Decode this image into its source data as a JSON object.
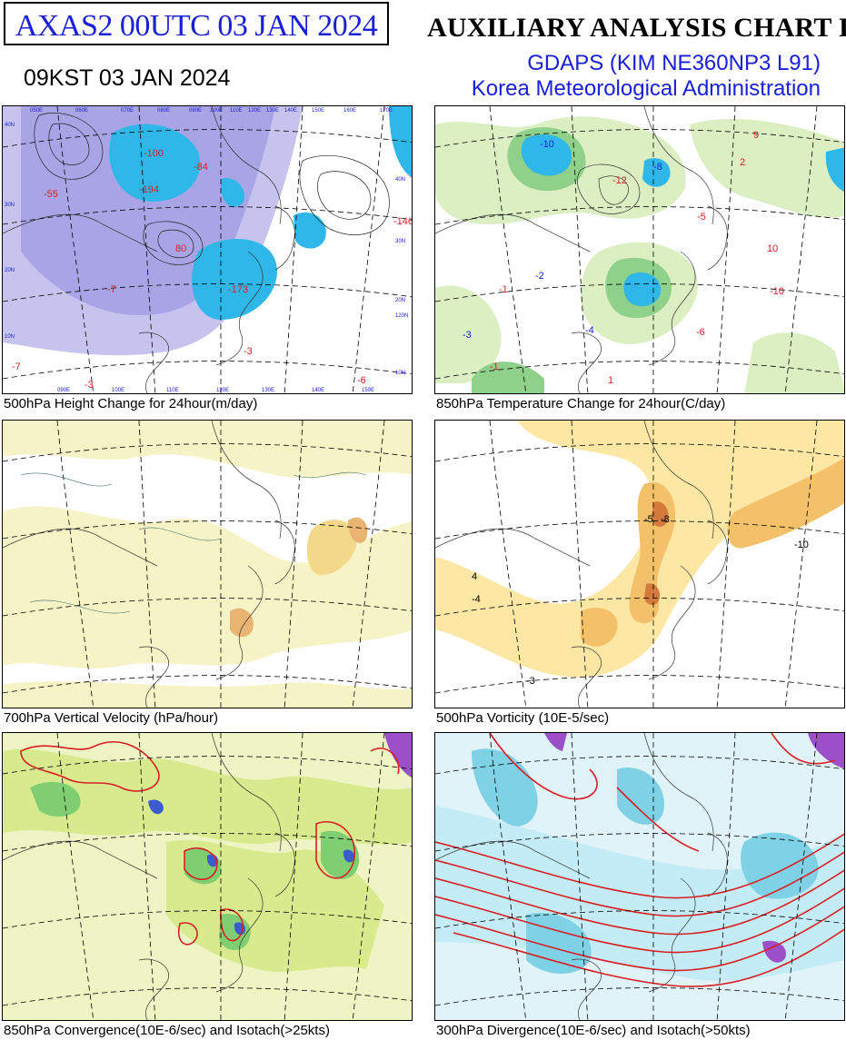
{
  "header": {
    "code_label": "AXAS2  00UTC 03 JAN 2024",
    "kst_label": "09KST 03 JAN 2024",
    "title": "AUXILIARY ANALYSIS CHART II",
    "model": "GDAPS (KIM NE360NP3 L91)",
    "agency": "Korea Meteorological Administration"
  },
  "panels": [
    {
      "id": "height-change",
      "caption": "500hPa Height Change for 24hour(m/day)",
      "values": [
        "-100",
        "-84",
        "-194",
        "-173",
        "80",
        "-146",
        "-3",
        "-7",
        "-6",
        "-3",
        "-7",
        "-55"
      ]
    },
    {
      "id": "temp-change",
      "caption": "850hPa Temperature Change for 24hour(C/day)",
      "values": [
        "-10",
        "-12",
        "-8",
        "-5",
        "10",
        "-10",
        "-6",
        "-1",
        "1",
        "-2",
        "-3",
        "-4",
        "2",
        "-1",
        "9"
      ]
    },
    {
      "id": "vertical-velocity",
      "caption": "700hPa Vertical Velocity (hPa/hour)",
      "values": []
    },
    {
      "id": "vorticity",
      "caption": "500hPa Vorticity (10E-5/sec)",
      "values": [
        "-8",
        "-5",
        "-4",
        "-10",
        "-3",
        "4"
      ]
    },
    {
      "id": "convergence",
      "caption": "850hPa Convergence(10E-6/sec) and Isotach(>25kts)",
      "values": []
    },
    {
      "id": "divergence",
      "caption": "300hPa Divergence(10E-6/sec) and Isotach(>50kts)",
      "values": []
    }
  ],
  "map_labels": {
    "longitudes_top": [
      "050E",
      "060E",
      "070E",
      "080E",
      "090E",
      "100E",
      "110E",
      "120E",
      "130E",
      "140E",
      "150E",
      "160E",
      "170E"
    ],
    "longitudes_bottom": [
      "090E",
      "100E",
      "110E",
      "120E",
      "130E",
      "140E",
      "150E"
    ],
    "latitudes_left": [
      "40N",
      "30N",
      "20N",
      "10N"
    ],
    "latitudes_right": [
      "40N",
      "30N",
      "20N",
      "120N",
      "10N"
    ]
  },
  "colors": {
    "header_blue": "#1a20d8",
    "height_fill_light": "#c6c4ee",
    "height_fill_mid": "#a8a4e6",
    "height_fill_strong": "#2fb7ea",
    "temp_fill_light": "#dcefc3",
    "temp_fill_mid": "#8fd08a",
    "temp_fill_strong": "#2fb7ea",
    "velocity_fill": "#f6f3c6",
    "vorticity_fill_light": "#fce7a4",
    "vorticity_fill_mid": "#f4c069",
    "vorticity_fill_strong": "#d47a3c",
    "convergence_fill_light": "#e8f0a8",
    "convergence_fill_mid": "#7fcf72",
    "divergence_fill_light": "#c3ecf6",
    "divergence_fill_mid": "#7fd2e6",
    "isotach": "#d81f26"
  }
}
